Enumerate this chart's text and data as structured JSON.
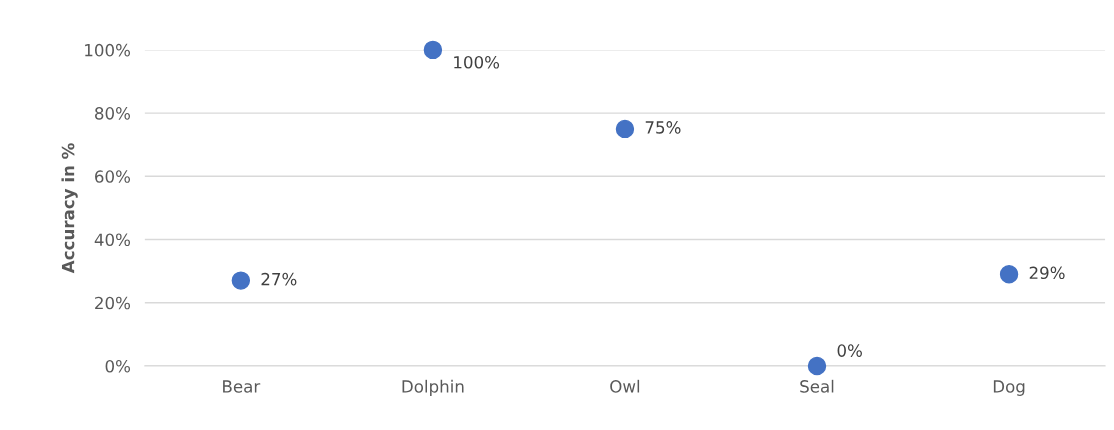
{
  "chart_data": {
    "type": "scatter",
    "ylabel": "Accuracy in %",
    "categories": [
      "Bear",
      "Dolphin",
      "Owl",
      "Seal",
      "Dog"
    ],
    "series": [
      {
        "color": "#4472c4",
        "values": [
          27,
          100,
          75,
          0,
          29
        ],
        "value_labels": [
          "27%",
          "100%",
          "75%",
          "0%",
          "29%"
        ]
      }
    ],
    "ylim": [
      0,
      100
    ],
    "yticks": [
      {
        "value": 0,
        "label": "0%"
      },
      {
        "value": 20,
        "label": "20%"
      },
      {
        "value": 40,
        "label": "40%"
      },
      {
        "value": 60,
        "label": "60%"
      },
      {
        "value": 80,
        "label": "80%"
      },
      {
        "value": 100,
        "label": "100%"
      }
    ],
    "grid": "y",
    "marker": "circle",
    "legend": false
  }
}
